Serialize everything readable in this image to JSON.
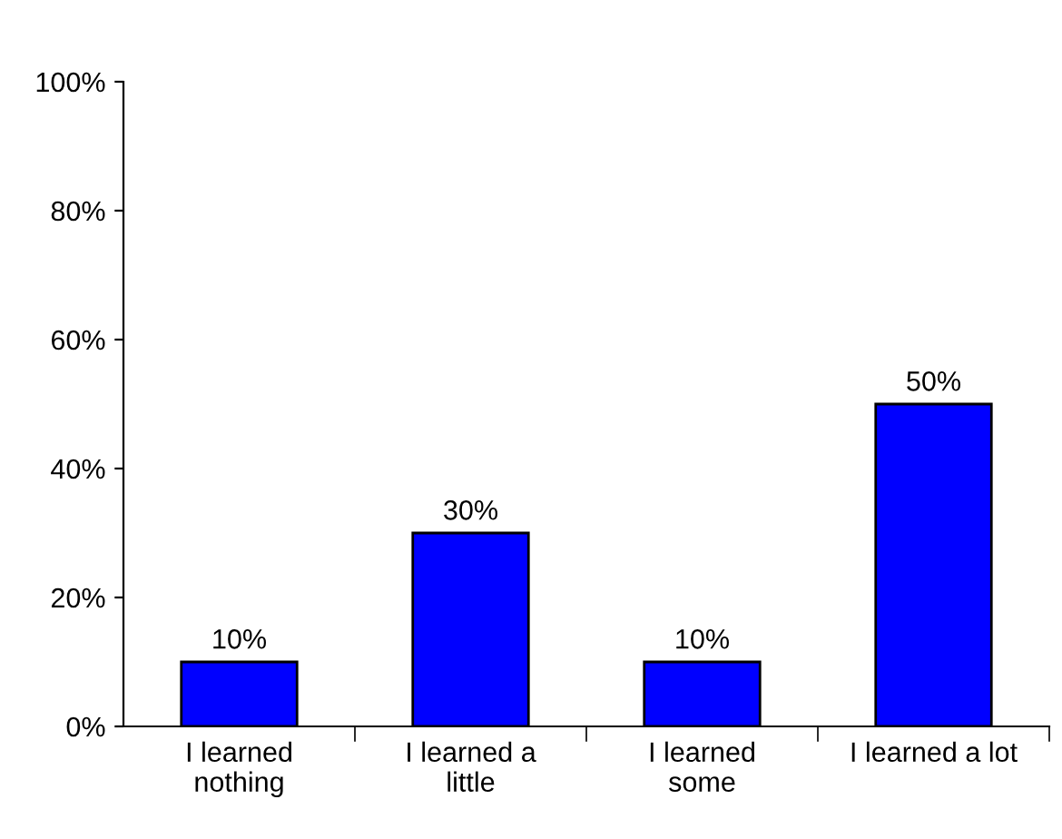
{
  "chart_data": {
    "type": "bar",
    "categories": [
      "I learned\nnothing",
      "I learned a\nlittle",
      "I learned\nsome",
      "I learned a lot"
    ],
    "values": [
      10,
      30,
      10,
      50
    ],
    "value_labels": [
      "10%",
      "30%",
      "10%",
      "50%"
    ],
    "color": "#0000ff",
    "ylim": [
      0,
      100
    ],
    "yticks": [
      {
        "value": 0,
        "label": "0%"
      },
      {
        "value": 20,
        "label": "20%"
      },
      {
        "value": 40,
        "label": "40%"
      },
      {
        "value": 60,
        "label": "60%"
      },
      {
        "value": 80,
        "label": "80%"
      },
      {
        "value": 100,
        "label": "100%"
      }
    ],
    "grid": false,
    "legend": false
  }
}
